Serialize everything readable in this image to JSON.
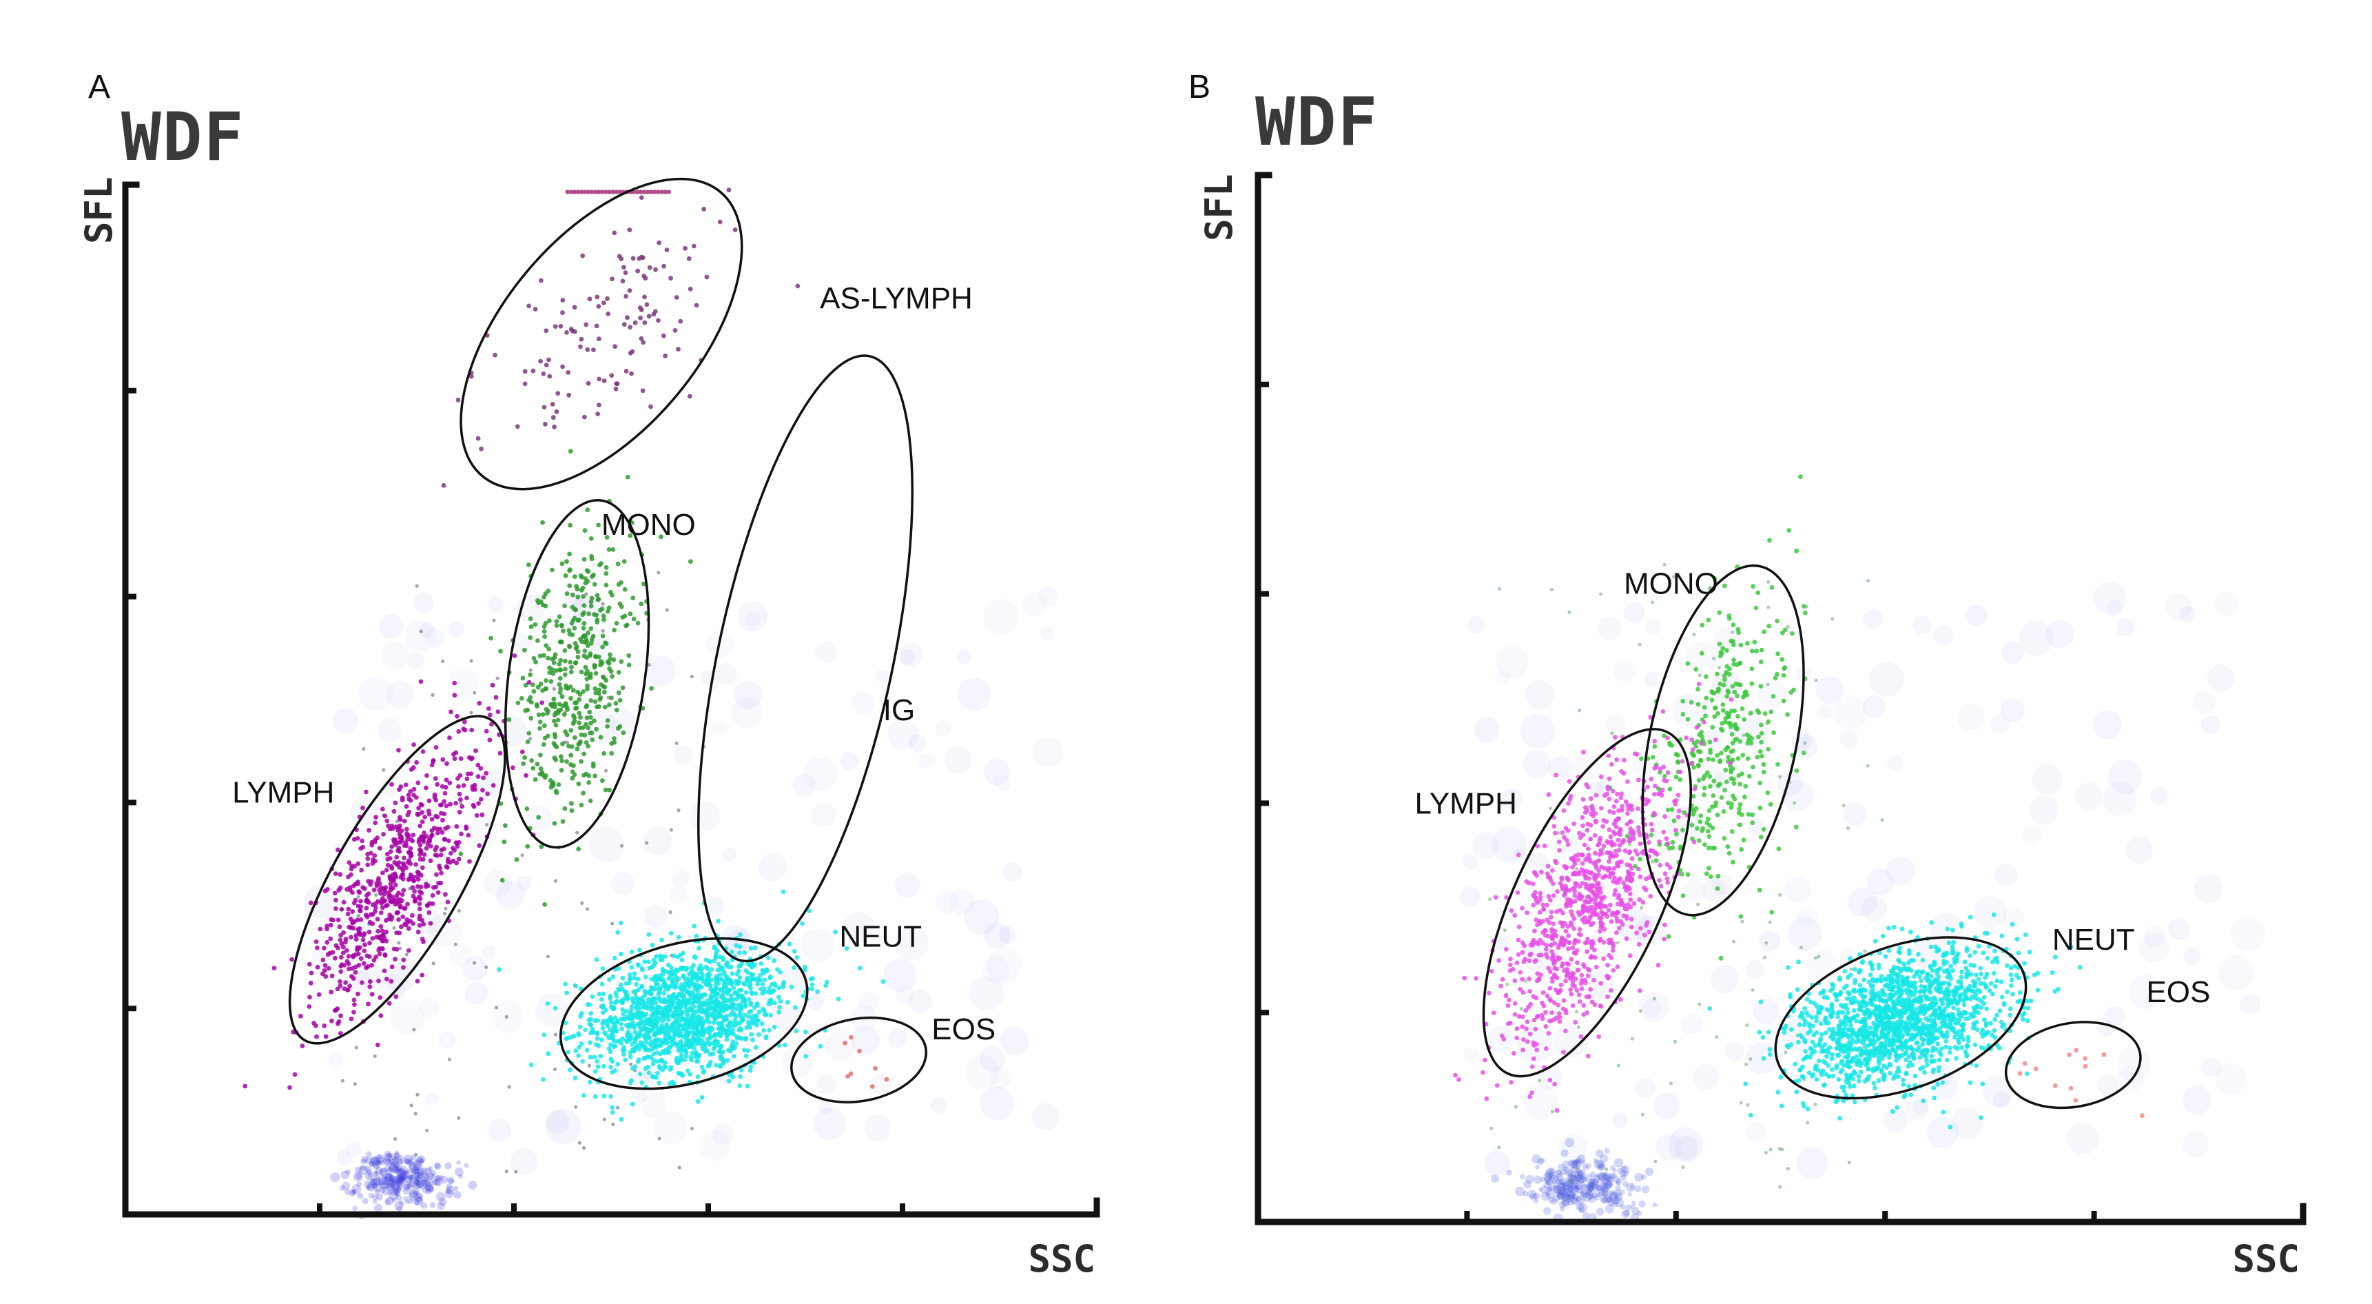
{
  "chart_data": [
    {
      "type": "scatter",
      "panel": "A",
      "title": "WDF",
      "xlabel": "SSC",
      "ylabel": "SFL",
      "xlim": [
        0,
        100
      ],
      "ylim": [
        0,
        100
      ],
      "x_ticks": 5,
      "y_ticks": 5,
      "gates": [
        {
          "name": "AS-LYMPH",
          "label": "AS-LYMPH",
          "center": [
            49,
            85.5
          ],
          "rx": 10,
          "ry": 18,
          "angle": 40,
          "color": "#7a3a7a",
          "count": 130,
          "label_pos": [
            71.5,
            88
          ]
        },
        {
          "name": "MONO",
          "label": "MONO",
          "center": [
            46.5,
            52.5
          ],
          "rx": 7,
          "ry": 17,
          "angle": 8,
          "color": "#2e9a2e",
          "count": 460,
          "label_pos": [
            49,
            66
          ]
        },
        {
          "name": "IG",
          "label": "IG",
          "center": [
            70,
            54
          ],
          "rx": 9,
          "ry": 30,
          "angle": 12,
          "color": "#8a7a9a",
          "count": 0,
          "label_pos": [
            78,
            48
          ]
        },
        {
          "name": "LYMPH",
          "label": "LYMPH",
          "center": [
            28,
            32.5
          ],
          "rx": 6.5,
          "ry": 18,
          "angle": 30,
          "color": "#a600a6",
          "count": 700,
          "label_pos": [
            11,
            40
          ]
        },
        {
          "name": "NEUT",
          "label": "NEUT",
          "center": [
            57.5,
            19.5
          ],
          "rx": 13,
          "ry": 6.8,
          "angle": -15,
          "color": "#19e6e6",
          "count": 1500,
          "label_pos": [
            73.5,
            26
          ]
        },
        {
          "name": "EOS",
          "label": "EOS",
          "center": [
            75.5,
            15
          ],
          "rx": 7,
          "ry": 4,
          "angle": -10,
          "color": "#e07070",
          "count": 8,
          "label_pos": [
            83,
            17
          ]
        }
      ],
      "debris": {
        "center": [
          28,
          3.5
        ],
        "color": "#4040e0"
      }
    },
    {
      "type": "scatter",
      "panel": "B",
      "title": "WDF",
      "xlabel": "SSC",
      "ylabel": "SFL",
      "xlim": [
        0,
        100
      ],
      "ylim": [
        0,
        100
      ],
      "x_ticks": 5,
      "y_ticks": 5,
      "gates": [
        {
          "name": "MONO",
          "label": "MONO",
          "center": [
            44.5,
            46
          ],
          "rx": 7,
          "ry": 17,
          "angle": 12,
          "color": "#3cc83c",
          "count": 360,
          "label_pos": [
            35,
            60
          ]
        },
        {
          "name": "LYMPH",
          "label": "LYMPH",
          "center": [
            31.5,
            30.5
          ],
          "rx": 7,
          "ry": 18,
          "angle": 25,
          "color": "#e650e6",
          "count": 900,
          "label_pos": [
            15,
            39
          ]
        },
        {
          "name": "NEUT",
          "label": "NEUT",
          "center": [
            61.5,
            19.5
          ],
          "rx": 12.5,
          "ry": 6.8,
          "angle": -20,
          "color": "#19e6e6",
          "count": 1600,
          "label_pos": [
            76,
            26
          ]
        },
        {
          "name": "EOS",
          "label": "EOS",
          "center": [
            78,
            15
          ],
          "rx": 6.5,
          "ry": 4,
          "angle": -10,
          "color": "#f08a8a",
          "count": 12,
          "label_pos": [
            85,
            21
          ]
        }
      ],
      "debris": {
        "center": [
          31,
          3.5
        ],
        "color": "#4a5ae0"
      }
    }
  ]
}
